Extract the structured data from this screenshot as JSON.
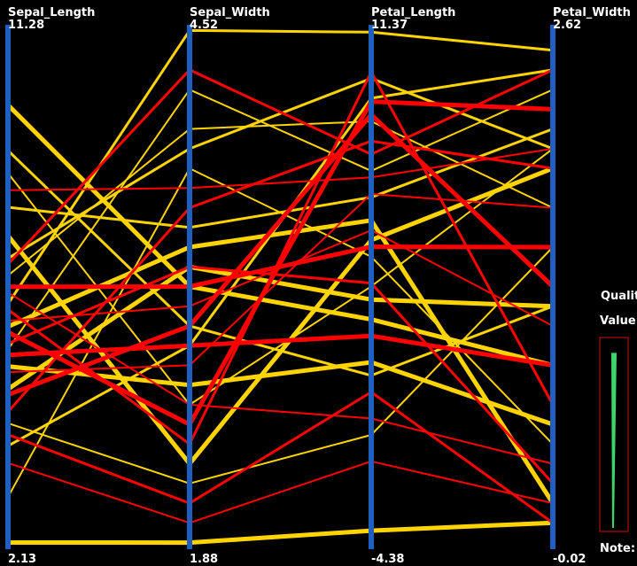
{
  "chart_data": {
    "type": "parallel_coordinates",
    "title": "",
    "axes": [
      {
        "name": "Sepal_Length",
        "max": "11.28",
        "min": "2.13",
        "max_value": 11.28,
        "min_value": 2.13
      },
      {
        "name": "Sepal_Width",
        "max": "4.52",
        "min": "1.88",
        "max_value": 4.52,
        "min_value": 1.88
      },
      {
        "name": "Petal_Length",
        "max": "11.37",
        "min": "-4.38",
        "max_value": 11.37,
        "min_value": -4.38
      },
      {
        "name": "Petal_Width",
        "max": "2.62",
        "min": "-0.02",
        "max_value": 2.62,
        "min_value": -0.02
      }
    ],
    "colors": {
      "background": "#000000",
      "axis": "#1f5fbf",
      "class_a": "#ff0000",
      "class_b": "#ffd400",
      "text": "#ffffff",
      "quality_frame": "#d01010",
      "quality_fill": "#3ed36b"
    },
    "series": [
      {
        "class": "yellow",
        "values": [
          9.9,
          3.2,
          2.5,
          0.9
        ]
      },
      {
        "class": "yellow",
        "values": [
          9.1,
          3.0,
          0.8,
          1.2
        ]
      },
      {
        "class": "yellow",
        "values": [
          8.7,
          2.6,
          3.5,
          2.0
        ]
      },
      {
        "class": "yellow",
        "values": [
          7.6,
          2.3,
          4.9,
          1.9
        ]
      },
      {
        "class": "yellow",
        "values": [
          6.4,
          4.5,
          11.2,
          2.5
        ]
      },
      {
        "class": "yellow",
        "values": [
          5.6,
          4.2,
          7.0,
          2.3
        ]
      },
      {
        "class": "yellow",
        "values": [
          4.9,
          3.3,
          3.1,
          1.2
        ]
      },
      {
        "class": "yellow",
        "values": [
          3.9,
          2.9,
          9.2,
          2.4
        ]
      },
      {
        "class": "yellow",
        "values": [
          3.0,
          3.8,
          4.4,
          0.5
        ]
      },
      {
        "class": "yellow",
        "values": [
          2.2,
          1.9,
          -3.9,
          0.1
        ]
      },
      {
        "class": "yellow",
        "values": [
          8.1,
          3.5,
          6.2,
          2.1
        ]
      },
      {
        "class": "yellow",
        "values": [
          6.9,
          4.0,
          8.5,
          1.7
        ]
      },
      {
        "class": "yellow",
        "values": [
          5.3,
          2.7,
          1.2,
          0.6
        ]
      },
      {
        "class": "yellow",
        "values": [
          7.2,
          3.9,
          9.8,
          2.0
        ]
      },
      {
        "class": "yellow",
        "values": [
          4.3,
          2.2,
          -1.0,
          1.5
        ]
      },
      {
        "class": "yellow",
        "values": [
          6.0,
          3.4,
          5.5,
          0.2
        ]
      },
      {
        "class": "red",
        "values": [
          7.1,
          4.3,
          7.5,
          2.4
        ]
      },
      {
        "class": "red",
        "values": [
          6.1,
          3.1,
          5.2,
          1.1
        ]
      },
      {
        "class": "red",
        "values": [
          5.9,
          2.5,
          9.1,
          2.2
        ]
      },
      {
        "class": "red",
        "values": [
          5.7,
          3.3,
          3.6,
          0.3
        ]
      },
      {
        "class": "red",
        "values": [
          5.2,
          2.8,
          6.3,
          1.7
        ]
      },
      {
        "class": "red",
        "values": [
          4.8,
          3.0,
          8.7,
          1.3
        ]
      },
      {
        "class": "red",
        "values": [
          4.1,
          2.1,
          0.3,
          0.1
        ]
      },
      {
        "class": "red",
        "values": [
          3.6,
          2.0,
          -1.8,
          0.2
        ]
      },
      {
        "class": "red",
        "values": [
          6.7,
          3.2,
          4.7,
          1.5
        ]
      },
      {
        "class": "red",
        "values": [
          6.3,
          2.4,
          10.0,
          0.7
        ]
      },
      {
        "class": "red",
        "values": [
          8.4,
          3.7,
          6.8,
          2.0
        ]
      },
      {
        "class": "red",
        "values": [
          5.5,
          2.9,
          2.0,
          0.9
        ]
      },
      {
        "class": "red",
        "values": [
          4.5,
          3.6,
          7.9,
          1.9
        ]
      },
      {
        "class": "red",
        "values": [
          6.6,
          2.6,
          -0.5,
          0.4
        ]
      }
    ]
  },
  "side_panel": {
    "quality_label": "Qualit",
    "value_label": "Value",
    "note_label": "Note:",
    "quality_fraction": 0.95
  }
}
